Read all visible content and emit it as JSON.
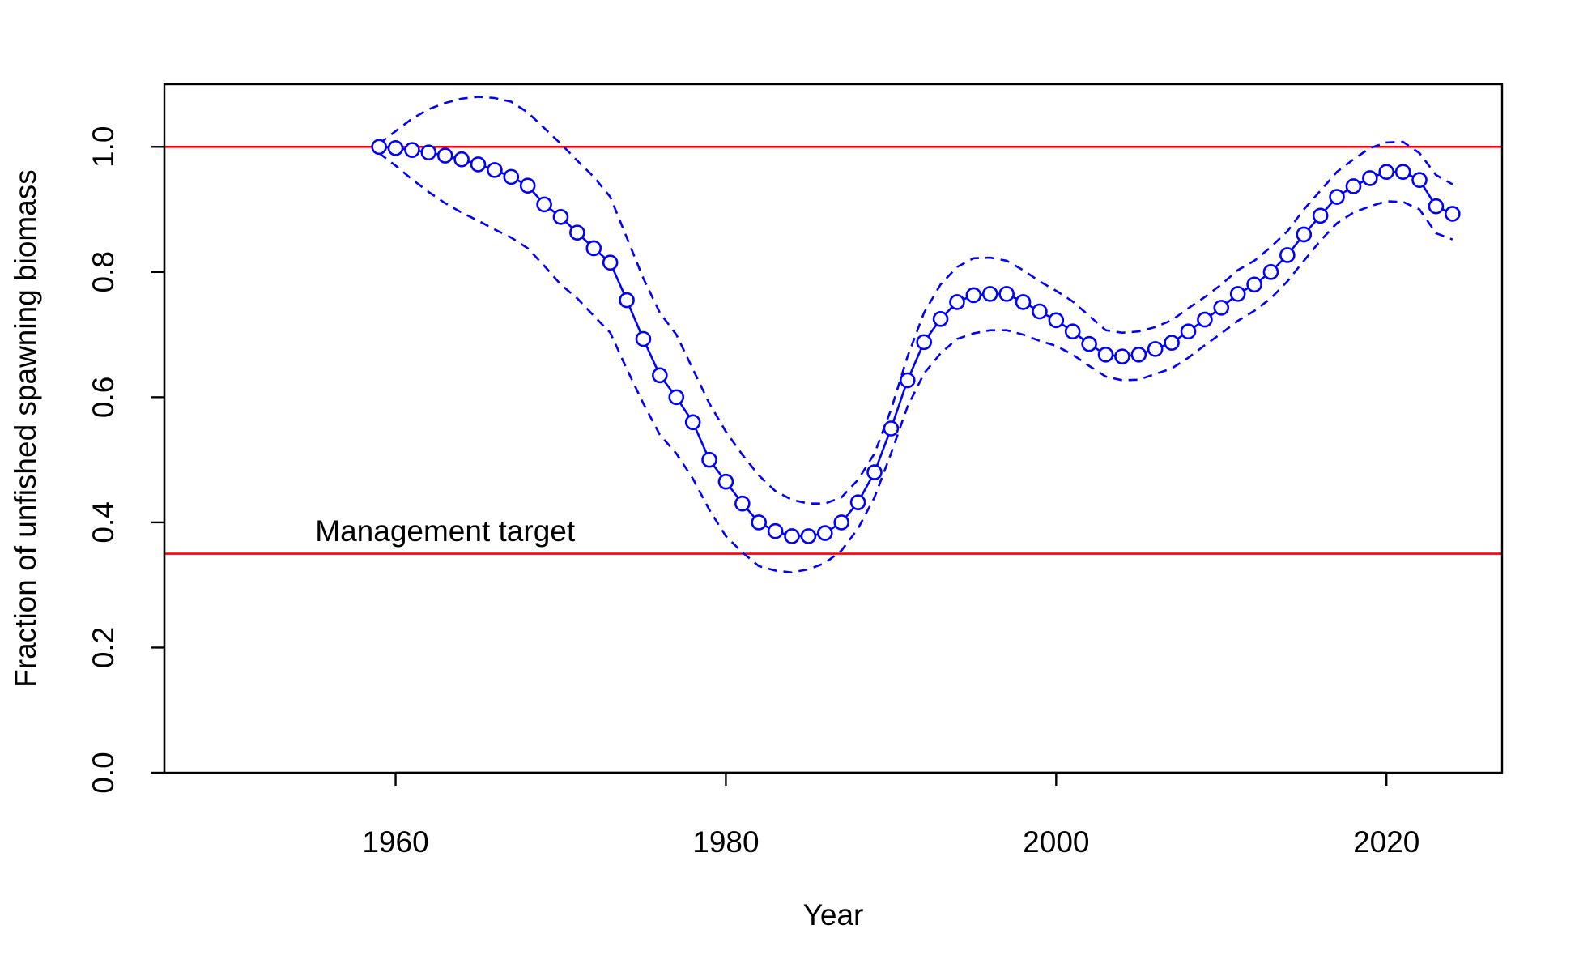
{
  "chart_data": {
    "type": "line",
    "title": "",
    "xlabel": "Year",
    "ylabel": "Fraction of unfished spawning biomass",
    "xlim": [
      1946,
      2027
    ],
    "ylim": [
      0,
      1.1
    ],
    "x_ticks": [
      1960,
      1980,
      2000,
      2020
    ],
    "x_tick_labels": [
      "1960",
      "1980",
      "2000",
      "2020"
    ],
    "y_ticks": [
      0,
      0.2,
      0.4,
      0.6,
      0.8,
      1.0
    ],
    "y_tick_labels": [
      "0.0",
      "0.2",
      "0.4",
      "0.6",
      "0.8",
      "1.0"
    ],
    "grid": false,
    "colors": {
      "series": "#0000FF",
      "reference": "#FF0000",
      "frame": "#000000"
    },
    "reference_lines": [
      {
        "y": 1.0,
        "label": ""
      },
      {
        "y": 0.35,
        "label": "Management target"
      }
    ],
    "annotation": {
      "text": "Management target",
      "x": 1963,
      "y": 0.37
    },
    "x": [
      1959,
      1960,
      1961,
      1962,
      1963,
      1964,
      1965,
      1966,
      1967,
      1968,
      1969,
      1970,
      1971,
      1972,
      1973,
      1974,
      1975,
      1976,
      1977,
      1978,
      1979,
      1980,
      1981,
      1982,
      1983,
      1984,
      1985,
      1986,
      1987,
      1988,
      1989,
      1990,
      1991,
      1992,
      1993,
      1994,
      1995,
      1996,
      1997,
      1998,
      1999,
      2000,
      2001,
      2002,
      2003,
      2004,
      2005,
      2006,
      2007,
      2008,
      2009,
      2010,
      2011,
      2012,
      2013,
      2014,
      2015,
      2016,
      2017,
      2018,
      2019,
      2020,
      2021,
      2022,
      2023,
      2024
    ],
    "series": [
      {
        "role": "estimate",
        "style": "line-with-circles",
        "values": [
          1.0,
          0.998,
          0.995,
          0.991,
          0.986,
          0.98,
          0.972,
          0.963,
          0.952,
          0.938,
          0.908,
          0.888,
          0.863,
          0.838,
          0.815,
          0.755,
          0.693,
          0.635,
          0.6,
          0.56,
          0.5,
          0.465,
          0.43,
          0.4,
          0.386,
          0.378,
          0.378,
          0.383,
          0.4,
          0.432,
          0.48,
          0.55,
          0.627,
          0.688,
          0.725,
          0.752,
          0.763,
          0.765,
          0.765,
          0.752,
          0.737,
          0.723,
          0.705,
          0.685,
          0.668,
          0.665,
          0.668,
          0.677,
          0.687,
          0.705,
          0.724,
          0.743,
          0.765,
          0.78,
          0.8,
          0.827,
          0.86,
          0.89,
          0.92,
          0.937,
          0.95,
          0.96,
          0.96,
          0.947,
          0.905,
          0.893
        ]
      },
      {
        "role": "upper",
        "style": "dashed",
        "values": [
          1.005,
          1.025,
          1.045,
          1.06,
          1.07,
          1.077,
          1.08,
          1.078,
          1.072,
          1.055,
          1.03,
          1.005,
          0.978,
          0.952,
          0.92,
          0.855,
          0.79,
          0.735,
          0.7,
          0.645,
          0.59,
          0.545,
          0.508,
          0.475,
          0.45,
          0.436,
          0.43,
          0.43,
          0.44,
          0.468,
          0.51,
          0.58,
          0.665,
          0.735,
          0.78,
          0.808,
          0.822,
          0.823,
          0.818,
          0.803,
          0.785,
          0.77,
          0.753,
          0.73,
          0.707,
          0.703,
          0.705,
          0.712,
          0.723,
          0.742,
          0.76,
          0.78,
          0.803,
          0.818,
          0.84,
          0.865,
          0.9,
          0.93,
          0.96,
          0.98,
          0.998,
          1.007,
          1.008,
          0.99,
          0.955,
          0.94
        ]
      },
      {
        "role": "lower",
        "style": "dashed",
        "values": [
          0.99,
          0.97,
          0.948,
          0.928,
          0.91,
          0.895,
          0.882,
          0.868,
          0.855,
          0.838,
          0.81,
          0.78,
          0.758,
          0.73,
          0.703,
          0.645,
          0.59,
          0.54,
          0.51,
          0.47,
          0.42,
          0.378,
          0.352,
          0.33,
          0.323,
          0.32,
          0.325,
          0.335,
          0.355,
          0.39,
          0.44,
          0.51,
          0.585,
          0.638,
          0.67,
          0.693,
          0.702,
          0.707,
          0.707,
          0.7,
          0.69,
          0.682,
          0.668,
          0.65,
          0.633,
          0.627,
          0.628,
          0.637,
          0.646,
          0.663,
          0.683,
          0.702,
          0.722,
          0.738,
          0.758,
          0.785,
          0.818,
          0.85,
          0.878,
          0.895,
          0.905,
          0.913,
          0.912,
          0.9,
          0.862,
          0.852
        ]
      }
    ]
  }
}
